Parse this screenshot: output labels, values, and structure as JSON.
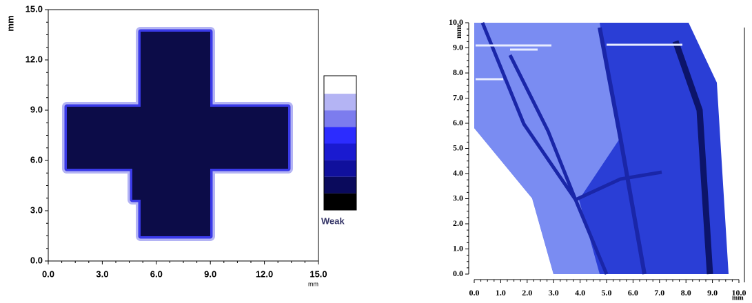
{
  "chart_data": [
    {
      "type": "contour",
      "xlabel": "mm",
      "ylabel": "mm",
      "xlim": [
        0,
        15
      ],
      "ylim": [
        0,
        15
      ],
      "xticks": [
        {
          "value": 0,
          "label": "0.0"
        },
        {
          "value": 3,
          "label": "3.0"
        },
        {
          "value": 6,
          "label": "6.0"
        },
        {
          "value": 9,
          "label": "9.0"
        },
        {
          "value": 12,
          "label": "12.0"
        },
        {
          "value": 15,
          "label": "15.0"
        }
      ],
      "yticks": [
        {
          "value": 0,
          "label": "0.0"
        },
        {
          "value": 3,
          "label": "3.0"
        },
        {
          "value": 6,
          "label": "6.0"
        },
        {
          "value": 9,
          "label": "9.0"
        },
        {
          "value": 12,
          "label": "12.0"
        },
        {
          "value": 15,
          "label": "15.0"
        }
      ],
      "colorbar_label": "Weak",
      "colorbar_colors": [
        "#ffffff",
        "#b4b4f4",
        "#7c7cee",
        "#2c2cff",
        "#1a1ad0",
        "#10109c",
        "#0a0a5c",
        "#000000"
      ]
    },
    {
      "type": "contour",
      "xlabel": "mm",
      "ylabel": "mm",
      "xlim": [
        0,
        10
      ],
      "ylim": [
        0,
        10
      ],
      "xticks": [
        {
          "value": 0,
          "label": "0.0"
        },
        {
          "value": 1,
          "label": "1.0"
        },
        {
          "value": 2,
          "label": "2.0"
        },
        {
          "value": 3,
          "label": "3.0"
        },
        {
          "value": 4,
          "label": "4.0"
        },
        {
          "value": 5,
          "label": "5.0"
        },
        {
          "value": 6,
          "label": "6.0"
        },
        {
          "value": 7,
          "label": "7.0"
        },
        {
          "value": 8,
          "label": "8.0"
        },
        {
          "value": 9,
          "label": "9.0"
        },
        {
          "value": 10,
          "label": "10.0"
        }
      ],
      "yticks": [
        {
          "value": 0,
          "label": "0.0"
        },
        {
          "value": 1,
          "label": "1.0"
        },
        {
          "value": 2,
          "label": "2.0"
        },
        {
          "value": 3,
          "label": "3.0"
        },
        {
          "value": 4,
          "label": "4.0"
        },
        {
          "value": 5,
          "label": "5.0"
        },
        {
          "value": 6,
          "label": "6.0"
        },
        {
          "value": 7,
          "label": "7.0"
        },
        {
          "value": 8,
          "label": "8.0"
        },
        {
          "value": 9,
          "label": "9.0"
        },
        {
          "value": 10,
          "label": "10.0"
        }
      ]
    }
  ]
}
